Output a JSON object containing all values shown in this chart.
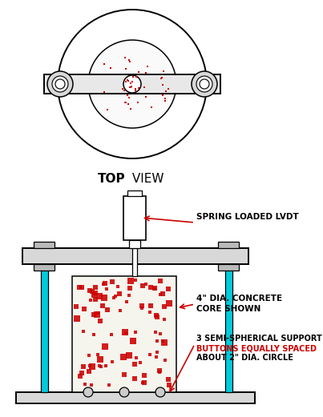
{
  "bg_color": "#ffffff",
  "line_color": "#000000",
  "red_color": "#cc0000",
  "cyan_color": "#00ccdd",
  "label_spring": "SPRING LOADED LVDT",
  "label_concrete_1": "4\" DIA. CONCRETE",
  "label_concrete_2": "CORE SHOWN",
  "label_btn_1": "3 SEMI-SPHERICAL SUPPORT",
  "label_btn_2": "BUTTONS EQUALLY SPACED",
  "label_btn_3": "ABOUT 2\" DIA. CIRCLE",
  "top_view_label_bold": "TOP",
  "top_view_label_normal": " VIEW"
}
